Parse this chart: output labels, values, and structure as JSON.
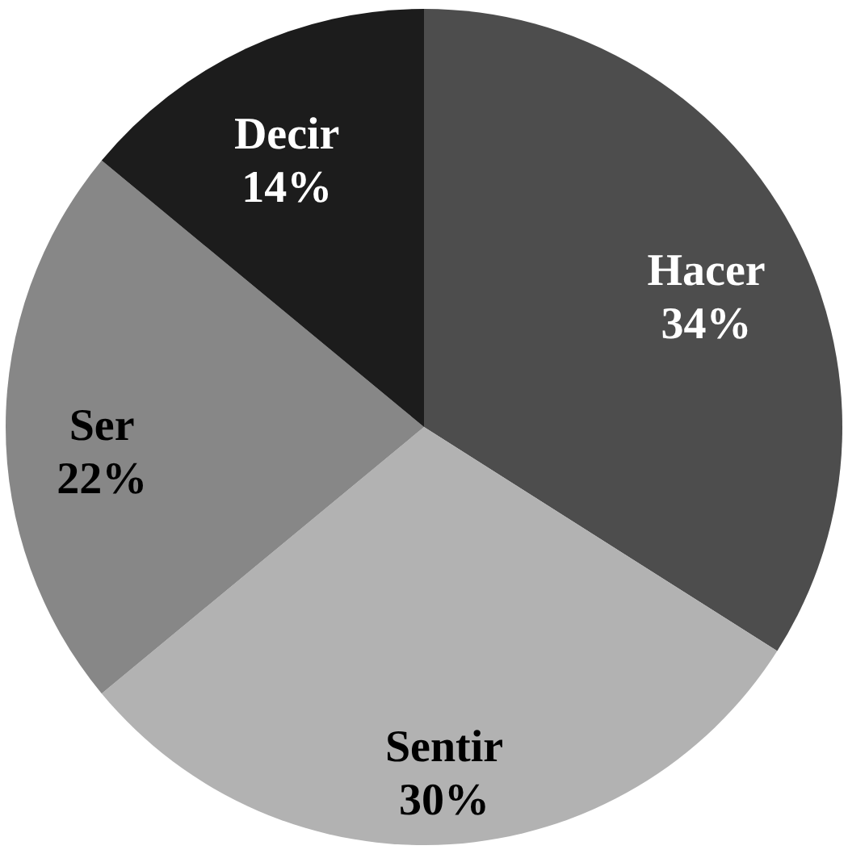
{
  "chart_data": {
    "type": "pie",
    "categories": [
      "Hacer",
      "Sentir",
      "Ser",
      "Decir"
    ],
    "values": [
      34,
      30,
      22,
      14
    ],
    "value_labels": [
      "34%",
      "30%",
      "22%",
      "14%"
    ],
    "colors": [
      "#4d4d4d",
      "#b2b2b2",
      "#878787",
      "#1c1c1c"
    ]
  }
}
